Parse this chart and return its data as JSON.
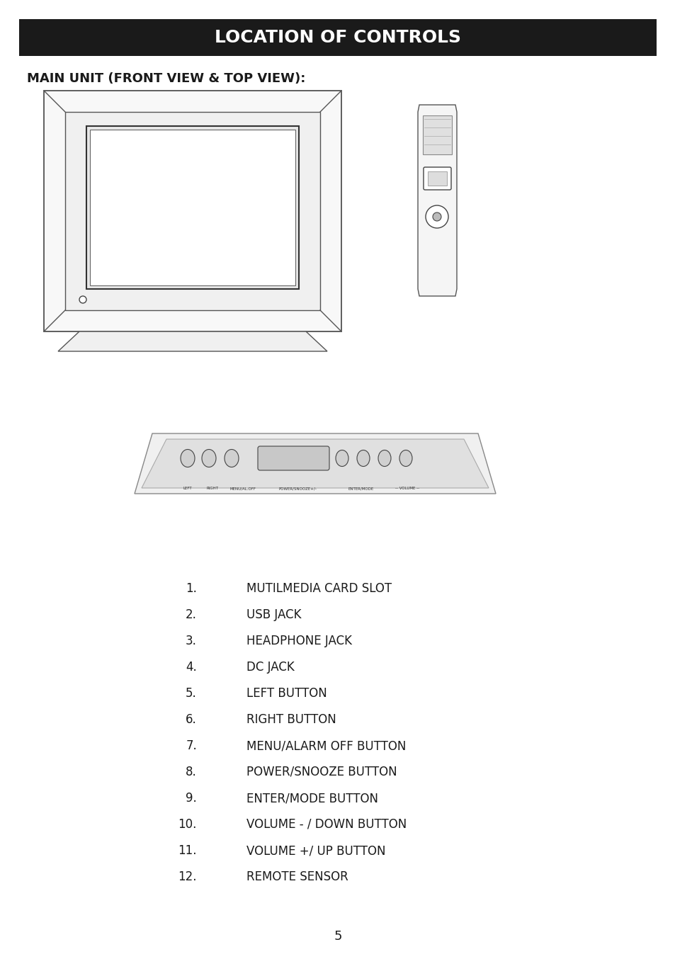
{
  "title": "LOCATION OF CONTROLS",
  "title_bg": "#1a1a1a",
  "title_color": "#ffffff",
  "subtitle": "MAIN UNIT (FRONT VIEW & TOP VIEW):",
  "page_number": "5",
  "background_color": "#ffffff",
  "items": [
    {
      "num": "1.",
      "text": "MUTILMEDIA CARD SLOT"
    },
    {
      "num": "2.",
      "text": "USB JACK"
    },
    {
      "num": "3.",
      "text": "HEADPHONE JACK"
    },
    {
      "num": "4.",
      "text": "DC JACK"
    },
    {
      "num": "5.",
      "text": "LEFT BUTTON"
    },
    {
      "num": "6.",
      "text": "RIGHT BUTTON"
    },
    {
      "num": "7.",
      "text": "MENU/ALARM OFF BUTTON"
    },
    {
      "num": "8.",
      "text": "POWER/SNOOZE BUTTON"
    },
    {
      "num": "9.",
      "text": "ENTER/MODE BUTTON"
    },
    {
      "num": "10.",
      "text": "VOLUME - / DOWN BUTTON"
    },
    {
      "num": "11.",
      "text": "VOLUME +/ UP BUTTON"
    },
    {
      "num": "12.",
      "text": "REMOTE SENSOR"
    }
  ]
}
